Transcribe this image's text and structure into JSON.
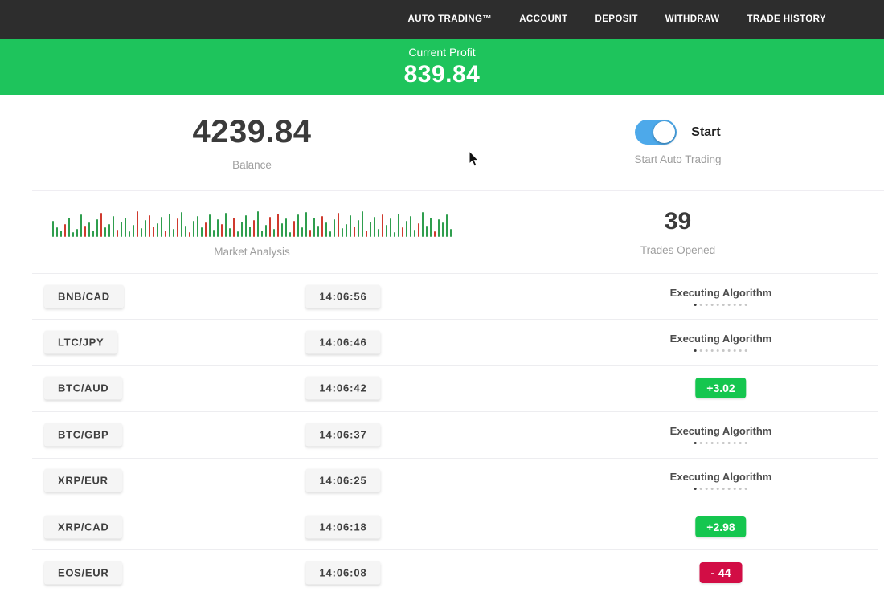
{
  "navbar": {
    "items": [
      "AUTO TRADING™",
      "ACCOUNT",
      "DEPOSIT",
      "WITHDRAW",
      "TRADE HISTORY"
    ]
  },
  "profit_banner": {
    "label": "Current Profit",
    "value": "839.84",
    "bg": "#1ec45c"
  },
  "balance": {
    "value": "4239.84",
    "label": "Balance"
  },
  "auto_trading": {
    "toggle_state": "on",
    "toggle_label": "Start",
    "label": "Start Auto Trading",
    "toggle_color": "#4da9ea"
  },
  "market_analysis": {
    "label": "Market Analysis",
    "colors": {
      "g": "#2f9e4e",
      "r": "#cf3a2e"
    },
    "bars": [
      [
        20,
        "g"
      ],
      [
        12,
        "g"
      ],
      [
        8,
        "g"
      ],
      [
        16,
        "r"
      ],
      [
        24,
        "g"
      ],
      [
        6,
        "g"
      ],
      [
        10,
        "g"
      ],
      [
        28,
        "g"
      ],
      [
        14,
        "r"
      ],
      [
        18,
        "g"
      ],
      [
        8,
        "g"
      ],
      [
        22,
        "g"
      ],
      [
        30,
        "r"
      ],
      [
        12,
        "g"
      ],
      [
        16,
        "g"
      ],
      [
        26,
        "g"
      ],
      [
        9,
        "r"
      ],
      [
        19,
        "g"
      ],
      [
        24,
        "g"
      ],
      [
        7,
        "g"
      ],
      [
        15,
        "g"
      ],
      [
        32,
        "r"
      ],
      [
        11,
        "g"
      ],
      [
        21,
        "g"
      ],
      [
        27,
        "r"
      ],
      [
        13,
        "r"
      ],
      [
        17,
        "g"
      ],
      [
        25,
        "g"
      ],
      [
        8,
        "r"
      ],
      [
        29,
        "g"
      ],
      [
        10,
        "g"
      ],
      [
        23,
        "r"
      ],
      [
        31,
        "g"
      ],
      [
        14,
        "g"
      ],
      [
        6,
        "r"
      ],
      [
        20,
        "g"
      ],
      [
        26,
        "g"
      ],
      [
        12,
        "g"
      ],
      [
        18,
        "r"
      ],
      [
        28,
        "g"
      ],
      [
        9,
        "g"
      ],
      [
        22,
        "g"
      ],
      [
        16,
        "r"
      ],
      [
        30,
        "g"
      ],
      [
        11,
        "g"
      ],
      [
        24,
        "r"
      ],
      [
        7,
        "g"
      ],
      [
        19,
        "g"
      ],
      [
        27,
        "g"
      ],
      [
        13,
        "g"
      ],
      [
        21,
        "r"
      ],
      [
        32,
        "g"
      ],
      [
        8,
        "g"
      ],
      [
        15,
        "g"
      ],
      [
        25,
        "r"
      ],
      [
        10,
        "g"
      ],
      [
        29,
        "r"
      ],
      [
        17,
        "g"
      ],
      [
        23,
        "g"
      ],
      [
        6,
        "g"
      ],
      [
        20,
        "r"
      ],
      [
        28,
        "g"
      ],
      [
        12,
        "g"
      ],
      [
        31,
        "g"
      ],
      [
        9,
        "r"
      ],
      [
        24,
        "g"
      ],
      [
        14,
        "g"
      ],
      [
        26,
        "r"
      ],
      [
        18,
        "g"
      ],
      [
        7,
        "g"
      ],
      [
        22,
        "g"
      ],
      [
        30,
        "r"
      ],
      [
        11,
        "g"
      ],
      [
        16,
        "g"
      ],
      [
        27,
        "g"
      ],
      [
        13,
        "r"
      ],
      [
        21,
        "g"
      ],
      [
        32,
        "g"
      ],
      [
        8,
        "r"
      ],
      [
        19,
        "g"
      ],
      [
        25,
        "g"
      ],
      [
        10,
        "g"
      ],
      [
        28,
        "r"
      ],
      [
        15,
        "g"
      ],
      [
        23,
        "g"
      ],
      [
        6,
        "g"
      ],
      [
        29,
        "g"
      ],
      [
        12,
        "r"
      ],
      [
        20,
        "g"
      ],
      [
        26,
        "g"
      ],
      [
        9,
        "g"
      ],
      [
        17,
        "r"
      ],
      [
        31,
        "g"
      ],
      [
        14,
        "g"
      ],
      [
        24,
        "g"
      ],
      [
        7,
        "r"
      ],
      [
        22,
        "g"
      ],
      [
        18,
        "g"
      ],
      [
        28,
        "g"
      ],
      [
        10,
        "g"
      ]
    ]
  },
  "trades_opened": {
    "value": "39",
    "label": "Trades Opened"
  },
  "trades": {
    "executing_label": "Executing Algorithm",
    "executing_dots": 10,
    "rows": [
      {
        "pair": "BNB/CAD",
        "time": "14:06:56",
        "status": "executing",
        "sign": "",
        "amount": ""
      },
      {
        "pair": "LTC/JPY",
        "time": "14:06:46",
        "status": "executing",
        "sign": "",
        "amount": ""
      },
      {
        "pair": "BTC/AUD",
        "time": "14:06:42",
        "status": "profit",
        "sign": "+",
        "amount": "3.02"
      },
      {
        "pair": "BTC/GBP",
        "time": "14:06:37",
        "status": "executing",
        "sign": "",
        "amount": ""
      },
      {
        "pair": "XRP/EUR",
        "time": "14:06:25",
        "status": "executing",
        "sign": "",
        "amount": ""
      },
      {
        "pair": "XRP/CAD",
        "time": "14:06:18",
        "status": "profit",
        "sign": "+",
        "amount": "2.98"
      },
      {
        "pair": "EOS/EUR",
        "time": "14:06:08",
        "status": "loss",
        "sign": "-",
        "amount": "44"
      }
    ]
  },
  "status_colors": {
    "profit": "#15c64f",
    "loss": "#d20d45"
  }
}
